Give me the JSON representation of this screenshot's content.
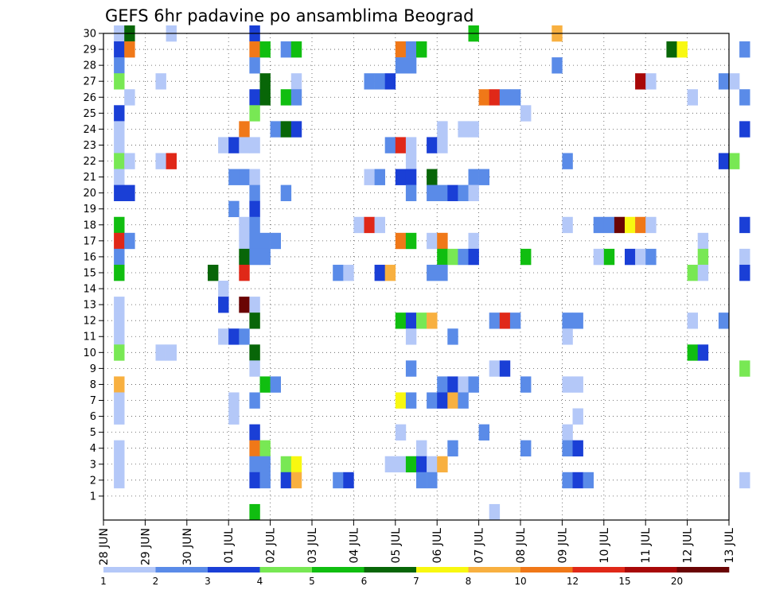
{
  "chart_data": {
    "type": "heatmap",
    "title": "GEFS 6hr padavine po ansamblima Beograd",
    "xlabel": "",
    "ylabel": "",
    "x_ticks": [
      "28 JUN",
      "29 JUN",
      "30 JUN",
      "01 JUL",
      "02 JUL",
      "03 JUL",
      "04 JUL",
      "05 JUL",
      "06 JUL",
      "07 JUL",
      "08 JUL",
      "09 JUL",
      "10 JUL",
      "11 JUL",
      "12 JUL",
      "13 JUL"
    ],
    "y_ticks": [
      "1",
      "2",
      "3",
      "4",
      "5",
      "6",
      "7",
      "8",
      "9",
      "10",
      "11",
      "12",
      "13",
      "14",
      "15",
      "16",
      "17",
      "18",
      "19",
      "20",
      "21",
      "22",
      "23",
      "24",
      "25",
      "26",
      "27",
      "28",
      "29",
      "30"
    ],
    "y_range": [
      0,
      30
    ],
    "x_range_days": [
      "28 JUN",
      "13 JUL"
    ],
    "grid": true,
    "legend": {
      "placement": "bottom",
      "labels": [
        "1",
        "2",
        "3",
        "4",
        "5",
        "6",
        "7",
        "8",
        "10",
        "12",
        "15",
        "20"
      ],
      "colors": [
        "#b4c8f8",
        "#5a8be8",
        "#1a3fd6",
        "#78e854",
        "#10be10",
        "#086608",
        "#f8f810",
        "#f8b040",
        "#f07818",
        "#e02818",
        "#a80808",
        "#6a0404"
      ]
    },
    "cells_note": "each cell: [member, 6h step index from 28 JUN 00Z, color class 0-11]",
    "cells": [
      [
        30,
        1,
        0
      ],
      [
        30,
        2,
        5
      ],
      [
        30,
        6,
        0
      ],
      [
        30,
        14,
        2
      ],
      [
        30,
        35,
        4
      ],
      [
        30,
        43,
        7
      ],
      [
        29,
        1,
        2
      ],
      [
        29,
        2,
        8
      ],
      [
        29,
        14,
        8
      ],
      [
        29,
        15,
        4
      ],
      [
        29,
        17,
        1
      ],
      [
        29,
        18,
        4
      ],
      [
        29,
        28,
        8
      ],
      [
        29,
        29,
        1
      ],
      [
        29,
        30,
        4
      ],
      [
        29,
        54,
        5
      ],
      [
        29,
        55,
        6
      ],
      [
        29,
        61,
        1
      ],
      [
        28,
        1,
        1
      ],
      [
        28,
        14,
        1
      ],
      [
        28,
        28,
        1
      ],
      [
        28,
        29,
        1
      ],
      [
        28,
        43,
        1
      ],
      [
        27,
        1,
        3
      ],
      [
        27,
        5,
        0
      ],
      [
        27,
        15,
        5
      ],
      [
        27,
        18,
        0
      ],
      [
        27,
        25,
        1
      ],
      [
        27,
        26,
        1
      ],
      [
        27,
        27,
        2
      ],
      [
        27,
        51,
        10
      ],
      [
        27,
        52,
        0
      ],
      [
        27,
        59,
        1
      ],
      [
        27,
        60,
        0
      ],
      [
        26,
        2,
        0
      ],
      [
        26,
        14,
        2
      ],
      [
        26,
        15,
        5
      ],
      [
        26,
        17,
        4
      ],
      [
        26,
        18,
        1
      ],
      [
        26,
        36,
        8
      ],
      [
        26,
        37,
        9
      ],
      [
        26,
        38,
        1
      ],
      [
        26,
        39,
        1
      ],
      [
        26,
        56,
        0
      ],
      [
        26,
        61,
        1
      ],
      [
        25,
        1,
        2
      ],
      [
        25,
        14,
        3
      ],
      [
        25,
        40,
        0
      ],
      [
        24,
        1,
        0
      ],
      [
        24,
        13,
        8
      ],
      [
        24,
        16,
        1
      ],
      [
        24,
        17,
        5
      ],
      [
        24,
        18,
        2
      ],
      [
        24,
        32,
        0
      ],
      [
        24,
        34,
        0
      ],
      [
        24,
        35,
        0
      ],
      [
        24,
        61,
        2
      ],
      [
        23,
        1,
        0
      ],
      [
        23,
        11,
        0
      ],
      [
        23,
        12,
        2
      ],
      [
        23,
        13,
        0
      ],
      [
        23,
        14,
        0
      ],
      [
        23,
        27,
        1
      ],
      [
        23,
        28,
        9
      ],
      [
        23,
        29,
        0
      ],
      [
        23,
        31,
        2
      ],
      [
        23,
        32,
        0
      ],
      [
        22,
        1,
        3
      ],
      [
        22,
        2,
        0
      ],
      [
        22,
        5,
        0
      ],
      [
        22,
        6,
        9
      ],
      [
        22,
        29,
        0
      ],
      [
        22,
        44,
        1
      ],
      [
        22,
        59,
        2
      ],
      [
        22,
        60,
        3
      ],
      [
        21,
        1,
        0
      ],
      [
        21,
        12,
        1
      ],
      [
        21,
        13,
        1
      ],
      [
        21,
        14,
        0
      ],
      [
        21,
        25,
        0
      ],
      [
        21,
        26,
        1
      ],
      [
        21,
        28,
        2
      ],
      [
        21,
        29,
        2
      ],
      [
        21,
        31,
        5
      ],
      [
        21,
        35,
        1
      ],
      [
        21,
        36,
        1
      ],
      [
        20,
        1,
        2
      ],
      [
        20,
        2,
        2
      ],
      [
        20,
        14,
        1
      ],
      [
        20,
        17,
        1
      ],
      [
        20,
        29,
        1
      ],
      [
        20,
        31,
        1
      ],
      [
        20,
        32,
        1
      ],
      [
        20,
        33,
        2
      ],
      [
        20,
        34,
        1
      ],
      [
        20,
        35,
        0
      ],
      [
        19,
        12,
        1
      ],
      [
        19,
        14,
        2
      ],
      [
        18,
        1,
        4
      ],
      [
        18,
        13,
        0
      ],
      [
        18,
        14,
        1
      ],
      [
        18,
        24,
        0
      ],
      [
        18,
        25,
        9
      ],
      [
        18,
        26,
        0
      ],
      [
        18,
        44,
        0
      ],
      [
        18,
        47,
        1
      ],
      [
        18,
        48,
        1
      ],
      [
        18,
        49,
        11
      ],
      [
        18,
        50,
        6
      ],
      [
        18,
        51,
        8
      ],
      [
        18,
        52,
        0
      ],
      [
        18,
        61,
        2
      ],
      [
        17,
        1,
        9
      ],
      [
        17,
        2,
        1
      ],
      [
        17,
        13,
        0
      ],
      [
        17,
        14,
        1
      ],
      [
        17,
        15,
        1
      ],
      [
        17,
        16,
        1
      ],
      [
        17,
        28,
        8
      ],
      [
        17,
        29,
        4
      ],
      [
        17,
        31,
        0
      ],
      [
        17,
        32,
        8
      ],
      [
        17,
        35,
        0
      ],
      [
        17,
        57,
        0
      ],
      [
        16,
        1,
        1
      ],
      [
        16,
        13,
        5
      ],
      [
        16,
        14,
        1
      ],
      [
        16,
        15,
        1
      ],
      [
        16,
        32,
        4
      ],
      [
        16,
        33,
        3
      ],
      [
        16,
        34,
        1
      ],
      [
        16,
        35,
        2
      ],
      [
        16,
        40,
        4
      ],
      [
        16,
        47,
        0
      ],
      [
        16,
        48,
        4
      ],
      [
        16,
        50,
        2
      ],
      [
        16,
        51,
        0
      ],
      [
        16,
        52,
        1
      ],
      [
        16,
        57,
        3
      ],
      [
        16,
        61,
        0
      ],
      [
        15,
        1,
        4
      ],
      [
        15,
        10,
        5
      ],
      [
        15,
        13,
        9
      ],
      [
        15,
        22,
        1
      ],
      [
        15,
        23,
        0
      ],
      [
        15,
        26,
        2
      ],
      [
        15,
        27,
        7
      ],
      [
        15,
        31,
        1
      ],
      [
        15,
        32,
        1
      ],
      [
        15,
        56,
        3
      ],
      [
        15,
        57,
        0
      ],
      [
        15,
        61,
        2
      ],
      [
        14,
        11,
        0
      ],
      [
        13,
        1,
        0
      ],
      [
        13,
        11,
        2
      ],
      [
        13,
        13,
        11
      ],
      [
        13,
        14,
        0
      ],
      [
        12,
        1,
        0
      ],
      [
        12,
        14,
        5
      ],
      [
        12,
        28,
        4
      ],
      [
        12,
        29,
        2
      ],
      [
        12,
        30,
        3
      ],
      [
        12,
        31,
        7
      ],
      [
        12,
        37,
        1
      ],
      [
        12,
        38,
        9
      ],
      [
        12,
        39,
        1
      ],
      [
        12,
        44,
        1
      ],
      [
        12,
        45,
        1
      ],
      [
        12,
        56,
        0
      ],
      [
        12,
        59,
        1
      ],
      [
        11,
        1,
        0
      ],
      [
        11,
        11,
        0
      ],
      [
        11,
        12,
        2
      ],
      [
        11,
        13,
        1
      ],
      [
        11,
        29,
        0
      ],
      [
        11,
        33,
        1
      ],
      [
        11,
        44,
        0
      ],
      [
        10,
        1,
        3
      ],
      [
        10,
        5,
        0
      ],
      [
        10,
        6,
        0
      ],
      [
        10,
        14,
        5
      ],
      [
        10,
        56,
        4
      ],
      [
        10,
        57,
        2
      ],
      [
        9,
        14,
        0
      ],
      [
        9,
        29,
        1
      ],
      [
        9,
        37,
        0
      ],
      [
        9,
        38,
        2
      ],
      [
        9,
        61,
        3
      ],
      [
        8,
        1,
        7
      ],
      [
        8,
        15,
        4
      ],
      [
        8,
        16,
        1
      ],
      [
        8,
        32,
        1
      ],
      [
        8,
        33,
        2
      ],
      [
        8,
        34,
        0
      ],
      [
        8,
        35,
        1
      ],
      [
        8,
        40,
        1
      ],
      [
        8,
        44,
        0
      ],
      [
        8,
        45,
        0
      ],
      [
        7,
        1,
        0
      ],
      [
        7,
        12,
        0
      ],
      [
        7,
        14,
        1
      ],
      [
        7,
        28,
        6
      ],
      [
        7,
        29,
        1
      ],
      [
        7,
        31,
        1
      ],
      [
        7,
        32,
        2
      ],
      [
        7,
        33,
        7
      ],
      [
        7,
        34,
        1
      ],
      [
        6,
        1,
        0
      ],
      [
        6,
        12,
        0
      ],
      [
        6,
        45,
        0
      ],
      [
        5,
        14,
        2
      ],
      [
        5,
        28,
        0
      ],
      [
        5,
        36,
        1
      ],
      [
        5,
        44,
        0
      ],
      [
        4,
        1,
        0
      ],
      [
        4,
        14,
        8
      ],
      [
        4,
        15,
        3
      ],
      [
        4,
        30,
        0
      ],
      [
        4,
        33,
        1
      ],
      [
        4,
        40,
        1
      ],
      [
        4,
        44,
        1
      ],
      [
        4,
        45,
        2
      ],
      [
        3,
        1,
        0
      ],
      [
        3,
        14,
        1
      ],
      [
        3,
        15,
        1
      ],
      [
        3,
        17,
        3
      ],
      [
        3,
        18,
        6
      ],
      [
        3,
        27,
        0
      ],
      [
        3,
        28,
        0
      ],
      [
        3,
        29,
        4
      ],
      [
        3,
        30,
        2
      ],
      [
        3,
        31,
        0
      ],
      [
        3,
        32,
        7
      ],
      [
        2,
        1,
        0
      ],
      [
        2,
        14,
        2
      ],
      [
        2,
        15,
        1
      ],
      [
        2,
        17,
        2
      ],
      [
        2,
        18,
        7
      ],
      [
        2,
        22,
        1
      ],
      [
        2,
        23,
        2
      ],
      [
        2,
        30,
        1
      ],
      [
        2,
        31,
        1
      ],
      [
        2,
        44,
        1
      ],
      [
        2,
        45,
        2
      ],
      [
        2,
        46,
        1
      ],
      [
        2,
        61,
        0
      ],
      [
        0,
        14,
        4
      ],
      [
        0,
        37,
        0
      ]
    ]
  }
}
